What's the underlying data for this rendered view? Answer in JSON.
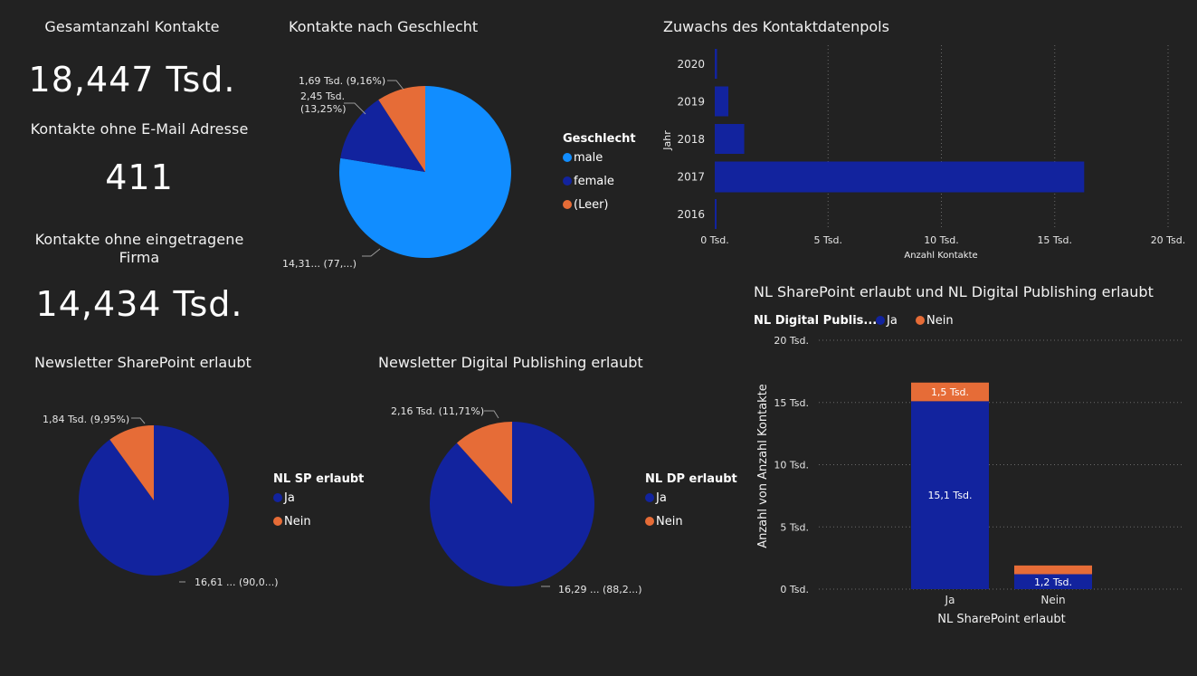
{
  "kpis": {
    "total_title": "Gesamtanzahl Kontakte",
    "total_value": "18,447 Tsd.",
    "noemail_title": "Kontakte ohne E-Mail Adresse",
    "noemail_value": "411",
    "nofirm_title": "Kontakte ohne eingetragene Firma",
    "nofirm_value": "14,434 Tsd."
  },
  "colors": {
    "blue_light": "#118dff",
    "blue_dark": "#12239e",
    "orange": "#e66c37",
    "background": "#222222"
  },
  "chart_data": [
    {
      "id": "gender",
      "type": "pie",
      "title": "Kontakte nach Geschlecht",
      "legend_title": "Geschlecht",
      "legend_placement": "right",
      "slices": [
        {
          "name": "male",
          "value": 14.31,
          "label": "14,31... (77,...)",
          "color": "#118dff"
        },
        {
          "name": "female",
          "value": 2.45,
          "label": "2,45 Tsd. (13,25%)",
          "color": "#12239e"
        },
        {
          "name": "(Leer)",
          "value": 1.69,
          "label": "1,69 Tsd. (9,16%)",
          "color": "#e66c37"
        }
      ]
    },
    {
      "id": "growth",
      "type": "bar",
      "orientation": "horizontal",
      "title": "Zuwachs des Kontaktdatenpols",
      "xlabel": "Anzahl Kontakte",
      "ylabel": "Jahr",
      "categories": [
        "2020",
        "2019",
        "2018",
        "2017",
        "2016"
      ],
      "values": [
        0.1,
        0.6,
        1.3,
        16.3,
        0.05
      ],
      "xlim": [
        0,
        20
      ],
      "xticks": [
        0,
        5,
        10,
        15,
        20
      ],
      "xtick_labels": [
        "0 Tsd.",
        "5 Tsd.",
        "10 Tsd.",
        "15 Tsd.",
        "20 Tsd."
      ],
      "grid": "vertical-dotted",
      "color": "#12239e"
    },
    {
      "id": "nl_sp",
      "type": "pie",
      "title": "Newsletter SharePoint erlaubt",
      "legend_title": "NL SP erlaubt",
      "legend_placement": "right",
      "slices": [
        {
          "name": "Ja",
          "value": 16.61,
          "label": "16,61 ... (90,0...)",
          "color": "#12239e"
        },
        {
          "name": "Nein",
          "value": 1.84,
          "label": "1,84 Tsd. (9,95%)",
          "color": "#e66c37"
        }
      ]
    },
    {
      "id": "nl_dp",
      "type": "pie",
      "title": "Newsletter Digital Publishing erlaubt",
      "legend_title": "NL DP erlaubt",
      "legend_placement": "right",
      "slices": [
        {
          "name": "Ja",
          "value": 16.29,
          "label": "16,29 ... (88,2...)",
          "color": "#12239e"
        },
        {
          "name": "Nein",
          "value": 2.16,
          "label": "2,16 Tsd. (11,71%)",
          "color": "#e66c37"
        }
      ]
    },
    {
      "id": "stacked",
      "type": "bar",
      "stacked": true,
      "title": "NL SharePoint erlaubt und NL Digital Publishing erlaubt",
      "legend_title": "NL Digital Publis...",
      "legend_placement": "top-left",
      "xlabel": "NL SharePoint erlaubt",
      "ylabel": "Anzahl von Anzahl Kontakte",
      "categories": [
        "Ja",
        "Nein"
      ],
      "ylim": [
        0,
        20
      ],
      "yticks": [
        0,
        5,
        10,
        15,
        20
      ],
      "ytick_labels": [
        "0 Tsd.",
        "5 Tsd.",
        "10 Tsd.",
        "15 Tsd.",
        "20 Tsd."
      ],
      "grid": "horizontal-dotted",
      "series": [
        {
          "name": "Ja",
          "values": [
            15.1,
            1.2
          ],
          "labels": [
            "15,1 Tsd.",
            "1,2 Tsd."
          ],
          "color": "#12239e"
        },
        {
          "name": "Nein",
          "values": [
            1.5,
            0.7
          ],
          "labels": [
            "1,5 Tsd.",
            ""
          ],
          "color": "#e66c37"
        }
      ]
    }
  ]
}
